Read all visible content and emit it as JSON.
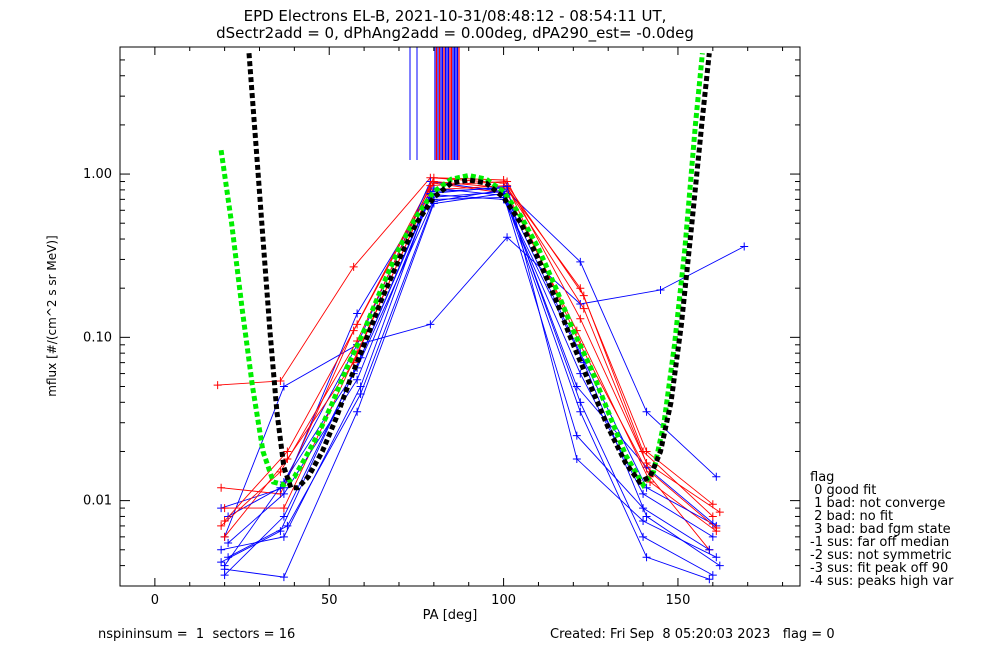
{
  "header": {
    "title_line1": "EPD Electrons EL-B, 2021-10-31/08:48:12 - 08:54:11 UT,",
    "title_line2": "dSectr2add = 0, dPhAng2add = 0.00deg, dPA290_est=  -0.0deg"
  },
  "chart_data": {
    "type": "line",
    "xlabel": "PA [deg]",
    "ylabel": "mflux [#/(cm^2 s sr MeV)]",
    "xlim": [
      -10,
      185
    ],
    "ylim": [
      0.003,
      6.0
    ],
    "yscale": "log",
    "xticks": [
      0,
      50,
      100,
      150
    ],
    "xtick_labels": [
      "0",
      "50",
      "100",
      "150"
    ],
    "yticks": [
      0.01,
      0.1,
      1.0
    ],
    "ytick_labels": [
      "0.01",
      "0.10",
      "1.00"
    ],
    "grid": false,
    "series": [
      {
        "color": "#ff0000",
        "x": [
          18,
          36,
          57,
          79,
          100,
          122,
          141,
          160
        ],
        "y": [
          0.051,
          0.054,
          0.27,
          0.95,
          0.88,
          0.2,
          0.02,
          0.0095
        ]
      },
      {
        "color": "#0000ff",
        "x": [
          20,
          37,
          58,
          79,
          101,
          122,
          145,
          169
        ],
        "y": [
          0.006,
          0.05,
          0.09,
          0.12,
          0.41,
          0.16,
          0.195,
          0.36
        ]
      },
      {
        "color": "#0000ff",
        "x": [
          19,
          37,
          58,
          79,
          100,
          122,
          141,
          161
        ],
        "y": [
          0.009,
          0.012,
          0.14,
          0.78,
          0.82,
          0.29,
          0.035,
          0.014
        ]
      },
      {
        "color": "#ff0000",
        "x": [
          19,
          36,
          57,
          80,
          100,
          123,
          140,
          160
        ],
        "y": [
          0.012,
          0.011,
          0.11,
          0.95,
          0.92,
          0.18,
          0.02,
          0.008
        ]
      },
      {
        "color": "#0000ff",
        "x": [
          20,
          37,
          58,
          79,
          100,
          121,
          141,
          161
        ],
        "y": [
          0.004,
          0.013,
          0.09,
          0.9,
          0.78,
          0.05,
          0.016,
          0.007
        ]
      },
      {
        "color": "#ff0000",
        "x": [
          20,
          38,
          57,
          79,
          101,
          122,
          142,
          159
        ],
        "y": [
          0.006,
          0.018,
          0.07,
          0.8,
          0.85,
          0.09,
          0.014,
          0.005
        ]
      },
      {
        "color": "#0000ff",
        "x": [
          21,
          36,
          58,
          80,
          100,
          122,
          140,
          160
        ],
        "y": [
          0.008,
          0.012,
          0.065,
          0.7,
          0.72,
          0.06,
          0.011,
          0.006
        ]
      },
      {
        "color": "#0000ff",
        "x": [
          19,
          37,
          59,
          79,
          100,
          123,
          141,
          162
        ],
        "y": [
          0.005,
          0.006,
          0.05,
          0.75,
          0.7,
          0.07,
          0.008,
          0.004
        ]
      },
      {
        "color": "#ff0000",
        "x": [
          20,
          37,
          58,
          80,
          101,
          121,
          142,
          161
        ],
        "y": [
          0.009,
          0.009,
          0.08,
          0.88,
          0.76,
          0.11,
          0.013,
          0.0065
        ]
      },
      {
        "color": "#0000ff",
        "x": [
          21,
          38,
          59,
          80,
          100,
          122,
          140,
          160
        ],
        "y": [
          0.0045,
          0.007,
          0.045,
          0.68,
          0.8,
          0.04,
          0.006,
          0.0035
        ]
      },
      {
        "color": "#ff0000",
        "x": [
          19,
          36,
          58,
          79,
          101,
          122,
          141,
          162
        ],
        "y": [
          0.007,
          0.015,
          0.095,
          0.85,
          0.9,
          0.13,
          0.017,
          0.0085
        ]
      },
      {
        "color": "#0000ff",
        "x": [
          20,
          37,
          57,
          80,
          100,
          121,
          140,
          159
        ],
        "y": [
          0.0035,
          0.008,
          0.06,
          0.82,
          0.74,
          0.025,
          0.009,
          0.005
        ]
      },
      {
        "color": "#0000ff",
        "x": [
          21,
          37,
          58,
          79,
          100,
          122,
          141,
          160
        ],
        "y": [
          0.0055,
          0.011,
          0.055,
          0.72,
          0.78,
          0.08,
          0.012,
          0.0072
        ]
      },
      {
        "color": "#ff0000",
        "x": [
          20,
          38,
          58,
          80,
          101,
          123,
          142,
          161
        ],
        "y": [
          0.0075,
          0.02,
          0.12,
          0.9,
          0.82,
          0.15,
          0.015,
          0.0068
        ]
      },
      {
        "color": "#0000ff",
        "x": [
          19,
          36,
          59,
          79,
          101,
          121,
          140,
          161
        ],
        "y": [
          0.0042,
          0.0065,
          0.075,
          0.76,
          0.84,
          0.018,
          0.0075,
          0.0045
        ]
      },
      {
        "color": "#0000ff",
        "x": [
          20,
          37,
          58,
          80,
          100,
          122,
          141,
          159
        ],
        "y": [
          0.0038,
          0.0034,
          0.035,
          0.66,
          0.76,
          0.035,
          0.0045,
          0.0033
        ]
      }
    ],
    "curves": [
      {
        "color": "#00ee00",
        "x": [
          19,
          22,
          25,
          28,
          31,
          34,
          37,
          40,
          43,
          47,
          51,
          55,
          60,
          65,
          70,
          75,
          80,
          85,
          90,
          95,
          100,
          105,
          110,
          115,
          120,
          125,
          130,
          135,
          140,
          143,
          146,
          149,
          152,
          155,
          157
        ],
        "y": [
          1.4,
          0.5,
          0.15,
          0.05,
          0.02,
          0.013,
          0.0125,
          0.014,
          0.018,
          0.026,
          0.04,
          0.065,
          0.11,
          0.2,
          0.35,
          0.55,
          0.78,
          0.93,
          0.98,
          0.93,
          0.78,
          0.55,
          0.35,
          0.2,
          0.11,
          0.065,
          0.035,
          0.019,
          0.0125,
          0.015,
          0.03,
          0.09,
          0.35,
          2.0,
          5.5
        ]
      },
      {
        "color": "#000000",
        "x": [
          27,
          29,
          31,
          33,
          35,
          37,
          39,
          41,
          44,
          48,
          52,
          56,
          60,
          65,
          70,
          75,
          80,
          85,
          90,
          95,
          100,
          105,
          110,
          115,
          120,
          125,
          130,
          135,
          139,
          142,
          145,
          148,
          151,
          154,
          157,
          159
        ],
        "y": [
          5.5,
          1.5,
          0.4,
          0.11,
          0.035,
          0.016,
          0.012,
          0.012,
          0.014,
          0.02,
          0.032,
          0.055,
          0.09,
          0.17,
          0.3,
          0.5,
          0.72,
          0.88,
          0.92,
          0.88,
          0.72,
          0.5,
          0.3,
          0.17,
          0.09,
          0.05,
          0.028,
          0.017,
          0.013,
          0.014,
          0.02,
          0.04,
          0.12,
          0.5,
          2.2,
          5.5
        ]
      }
    ]
  },
  "legend": {
    "items": [
      "flag",
      " 0 good fit",
      " 1 bad: not converge",
      " 2 bad: no fit",
      " 3 bad: bad fgm state",
      "-1 sus: far off median",
      "-2 sus: not symmetric",
      "-3 sus: fit peak off 90",
      "-4 sus: peaks high var"
    ]
  },
  "footer": {
    "left": "nspininsum =  1  sectors = 16",
    "right": "Created: Fri Sep  8 05:20:03 2023   flag = 0"
  }
}
